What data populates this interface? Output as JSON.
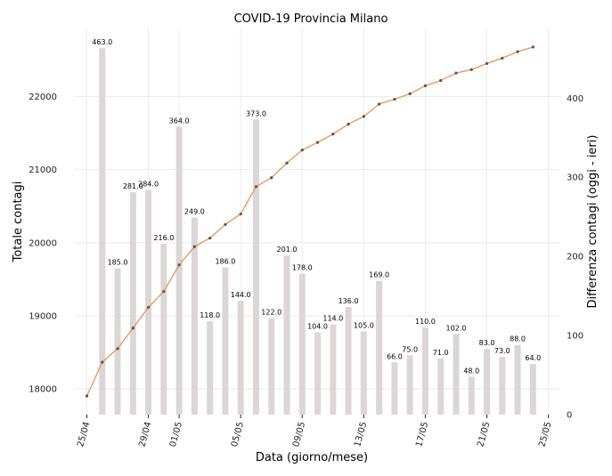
{
  "chart_data": {
    "type": "bar+line",
    "title": "COVID-19 Provincia Milano",
    "xlabel": "Data (giorno/mese)",
    "ylabel_left": "Totale contagi",
    "ylabel_right": "Differenza contagi (oggi - ieri)",
    "x_tick_labels": [
      "25/04",
      "29/04",
      "01/05",
      "05/05",
      "09/05",
      "13/05",
      "17/05",
      "21/05",
      "25/05"
    ],
    "x_tick_days": [
      0,
      4,
      6,
      10,
      14,
      18,
      22,
      26,
      30
    ],
    "y_left_ticks": [
      18000,
      19000,
      20000,
      21000,
      22000
    ],
    "y_left_range": [
      17650,
      22930
    ],
    "y_right_ticks": [
      0,
      100,
      200,
      300,
      400
    ],
    "y_right_range": [
      0,
      488
    ],
    "grid": true,
    "series": [
      {
        "kind": "bar",
        "axis": "right",
        "color": "#dbd7d7",
        "days": [
          1,
          2,
          3,
          4,
          5,
          6,
          7,
          8,
          9,
          10,
          11,
          12,
          13,
          14,
          15,
          16,
          17,
          18,
          19,
          20,
          21,
          22,
          23,
          24,
          25,
          26,
          27,
          28,
          29
        ],
        "values": [
          463,
          185,
          281,
          284,
          216,
          364,
          249,
          118,
          186,
          144,
          373,
          122,
          201,
          178,
          104,
          114,
          136,
          105,
          169,
          66,
          75,
          110,
          71,
          102,
          48,
          83,
          73,
          88,
          64
        ],
        "labels": [
          "463.0",
          "185.0",
          "281.0",
          "284.0",
          "216.0",
          "364.0",
          "249.0",
          "118.0",
          "186.0",
          "144.0",
          "373.0",
          "122.0",
          "201.0",
          "178.0",
          "104.0",
          "114.0",
          "136.0",
          "105.0",
          "169.0",
          "66.0",
          "75.0",
          "110.0",
          "71.0",
          "102.0",
          "48.0",
          "83.0",
          "73.0",
          "88.0",
          "64.0"
        ]
      },
      {
        "kind": "line",
        "axis": "left",
        "color": "#e8935a",
        "marker_color": "#555555",
        "days": [
          0,
          1,
          2,
          3,
          4,
          5,
          6,
          7,
          8,
          9,
          10,
          11,
          12,
          13,
          14,
          15,
          16,
          17,
          18,
          19,
          20,
          21,
          22,
          23,
          24,
          25,
          26,
          27,
          28,
          29
        ],
        "values": [
          17904,
          18367,
          18552,
          18833,
          19117,
          19333,
          19697,
          19946,
          20064,
          20250,
          20394,
          20767,
          20889,
          21090,
          21268,
          21372,
          21486,
          21622,
          21727,
          21896,
          21962,
          22037,
          22147,
          22218,
          22320,
          22368,
          22451,
          22524,
          22612,
          22676
        ]
      }
    ]
  }
}
